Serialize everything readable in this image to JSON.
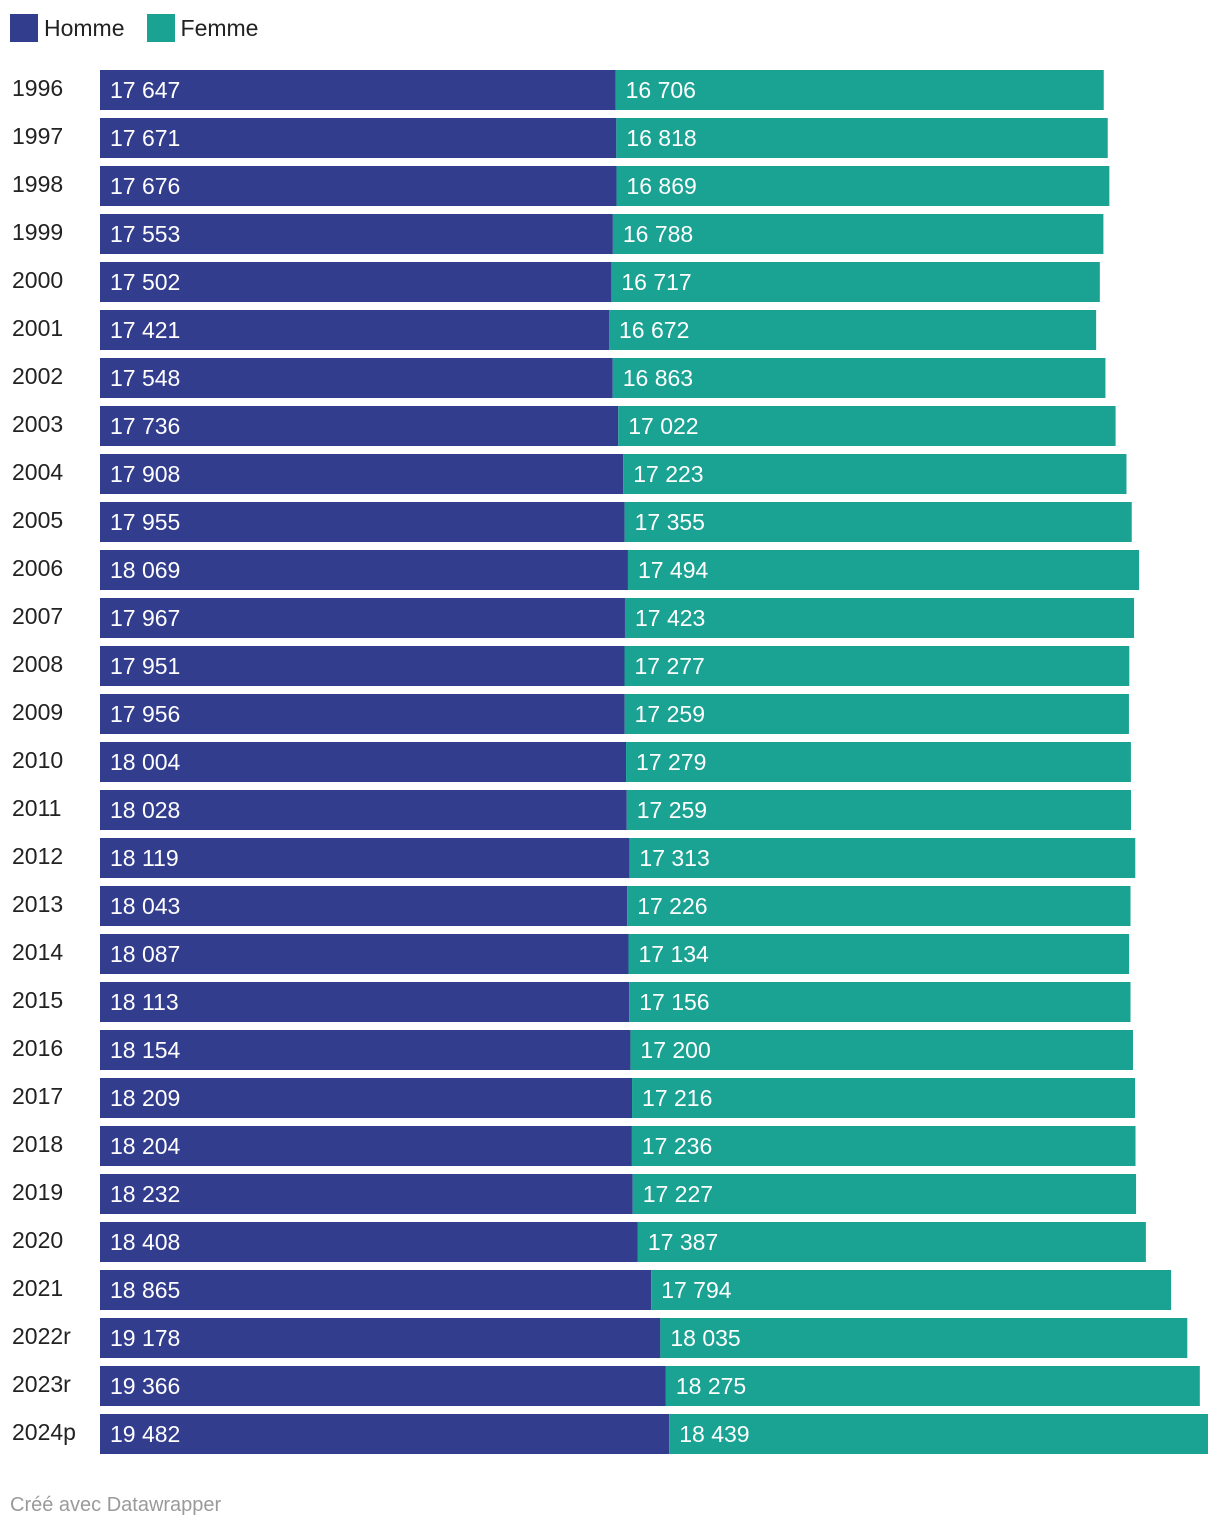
{
  "legend": {
    "items": [
      {
        "label": "Homme",
        "color": "#333d8e"
      },
      {
        "label": "Femme",
        "color": "#1aa293"
      }
    ]
  },
  "chart_data": {
    "type": "bar",
    "orientation": "horizontal",
    "stacked": true,
    "categories": [
      "1996",
      "1997",
      "1998",
      "1999",
      "2000",
      "2001",
      "2002",
      "2003",
      "2004",
      "2005",
      "2006",
      "2007",
      "2008",
      "2009",
      "2010",
      "2011",
      "2012",
      "2013",
      "2014",
      "2015",
      "2016",
      "2017",
      "2018",
      "2019",
      "2020",
      "2021",
      "2022r",
      "2023r",
      "2024p"
    ],
    "series": [
      {
        "name": "Homme",
        "color": "#333d8e",
        "values": [
          17647,
          17671,
          17676,
          17553,
          17502,
          17421,
          17548,
          17736,
          17908,
          17955,
          18069,
          17967,
          17951,
          17956,
          18004,
          18028,
          18119,
          18043,
          18087,
          18113,
          18154,
          18209,
          18204,
          18232,
          18408,
          18865,
          19178,
          19366,
          19482
        ],
        "labels": [
          "17 647",
          "17 671",
          "17 676",
          "17 553",
          "17 502",
          "17 421",
          "17 548",
          "17 736",
          "17 908",
          "17 955",
          "18 069",
          "17 967",
          "17 951",
          "17 956",
          "18 004",
          "18 028",
          "18 119",
          "18 043",
          "18 087",
          "18 113",
          "18 154",
          "18 209",
          "18 204",
          "18 232",
          "18 408",
          "18 865",
          "19 178",
          "19 366",
          "19 482"
        ]
      },
      {
        "name": "Femme",
        "color": "#1aa293",
        "values": [
          16706,
          16818,
          16869,
          16788,
          16717,
          16672,
          16863,
          17022,
          17223,
          17355,
          17494,
          17423,
          17277,
          17259,
          17279,
          17259,
          17313,
          17226,
          17134,
          17156,
          17200,
          17216,
          17236,
          17227,
          17387,
          17794,
          18035,
          18275,
          18439
        ],
        "labels": [
          "16 706",
          "16 818",
          "16 869",
          "16 788",
          "16 717",
          "16 672",
          "16 863",
          "17 022",
          "17 223",
          "17 355",
          "17 494",
          "17 423",
          "17 277",
          "17 259",
          "17 279",
          "17 259",
          "17 313",
          "17 226",
          "17 134",
          "17 156",
          "17 200",
          "17 216",
          "17 236",
          "17 227",
          "17 387",
          "17 794",
          "18 035",
          "18 275",
          "18 439"
        ]
      }
    ],
    "title": "",
    "xlabel": "",
    "ylabel": "",
    "xlim": [
      0,
      37921
    ],
    "grid": false,
    "legend_position": "top-left"
  },
  "footer": {
    "credit": "Créé avec Datawrapper"
  }
}
